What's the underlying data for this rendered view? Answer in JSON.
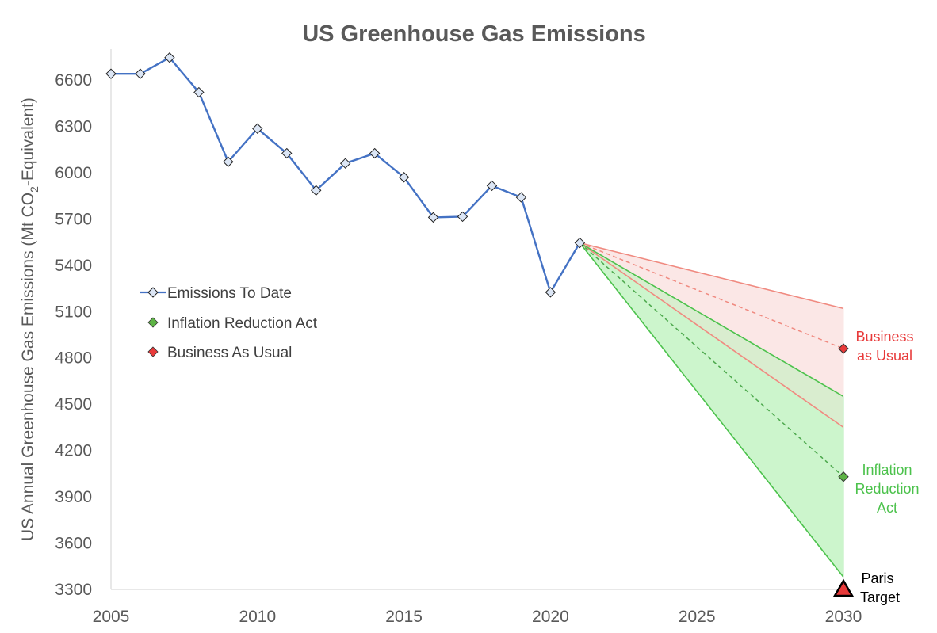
{
  "chart_data": {
    "type": "line",
    "title": "US Greenhouse Gas Emissions",
    "ylabel_main": "US Annual Greenhouse Gas Emissions (Mt CO",
    "ylabel_sub": "2",
    "ylabel_tail": "-Equivalent)",
    "xlabel": "",
    "xlim": [
      2005,
      2030
    ],
    "ylim": [
      3300,
      6800
    ],
    "x_ticks": [
      2005,
      2010,
      2015,
      2020,
      2025,
      2030
    ],
    "y_ticks": [
      3300,
      3600,
      3900,
      4200,
      4500,
      4800,
      5100,
      5400,
      5700,
      6000,
      6300,
      6600
    ],
    "series": [
      {
        "name": "Emissions To Date",
        "color": "#4472C4",
        "x": [
          2005,
          2006,
          2007,
          2008,
          2009,
          2010,
          2011,
          2012,
          2013,
          2014,
          2015,
          2016,
          2017,
          2018,
          2019,
          2020,
          2021
        ],
        "values": [
          6640,
          6640,
          6745,
          6520,
          6070,
          6285,
          6125,
          5885,
          6060,
          6125,
          5970,
          5710,
          5715,
          5915,
          5840,
          5225,
          5545
        ]
      },
      {
        "name": "Inflation Reduction Act",
        "color": "#5DB345",
        "x": [
          2021,
          2030
        ],
        "values": [
          5545,
          4030
        ],
        "range_upper": 4550,
        "range_lower": 3380
      },
      {
        "name": "Business As Usual",
        "color": "#E83A3A",
        "x": [
          2021,
          2030
        ],
        "values": [
          5545,
          4860
        ],
        "range_upper": 5120,
        "range_lower": 4350
      }
    ],
    "paris_target": {
      "label_line1": "Paris",
      "label_line2": "Target",
      "x": 2030,
      "value": 3300
    },
    "annotations": {
      "bau_line1": "Business",
      "bau_line2": "as Usual",
      "ira_line1": "Inflation",
      "ira_line2": "Reduction",
      "ira_line3": "Act"
    },
    "legend": {
      "placement": "left-center",
      "entries": [
        "Emissions To Date",
        "Inflation Reduction Act",
        "Business As Usual"
      ]
    },
    "colors": {
      "history": "#4472C4",
      "ira": "#5DB345",
      "ira_band_line": "#4CC24C",
      "ira_fill": "#CCF5CC",
      "bau": "#E83A3A",
      "bau_line": "#F08A80",
      "bau_fill": "#FBE7E6",
      "overlap_fill": "#D9EDCF",
      "axis": "#D9D9D9",
      "text": "#595959"
    }
  }
}
